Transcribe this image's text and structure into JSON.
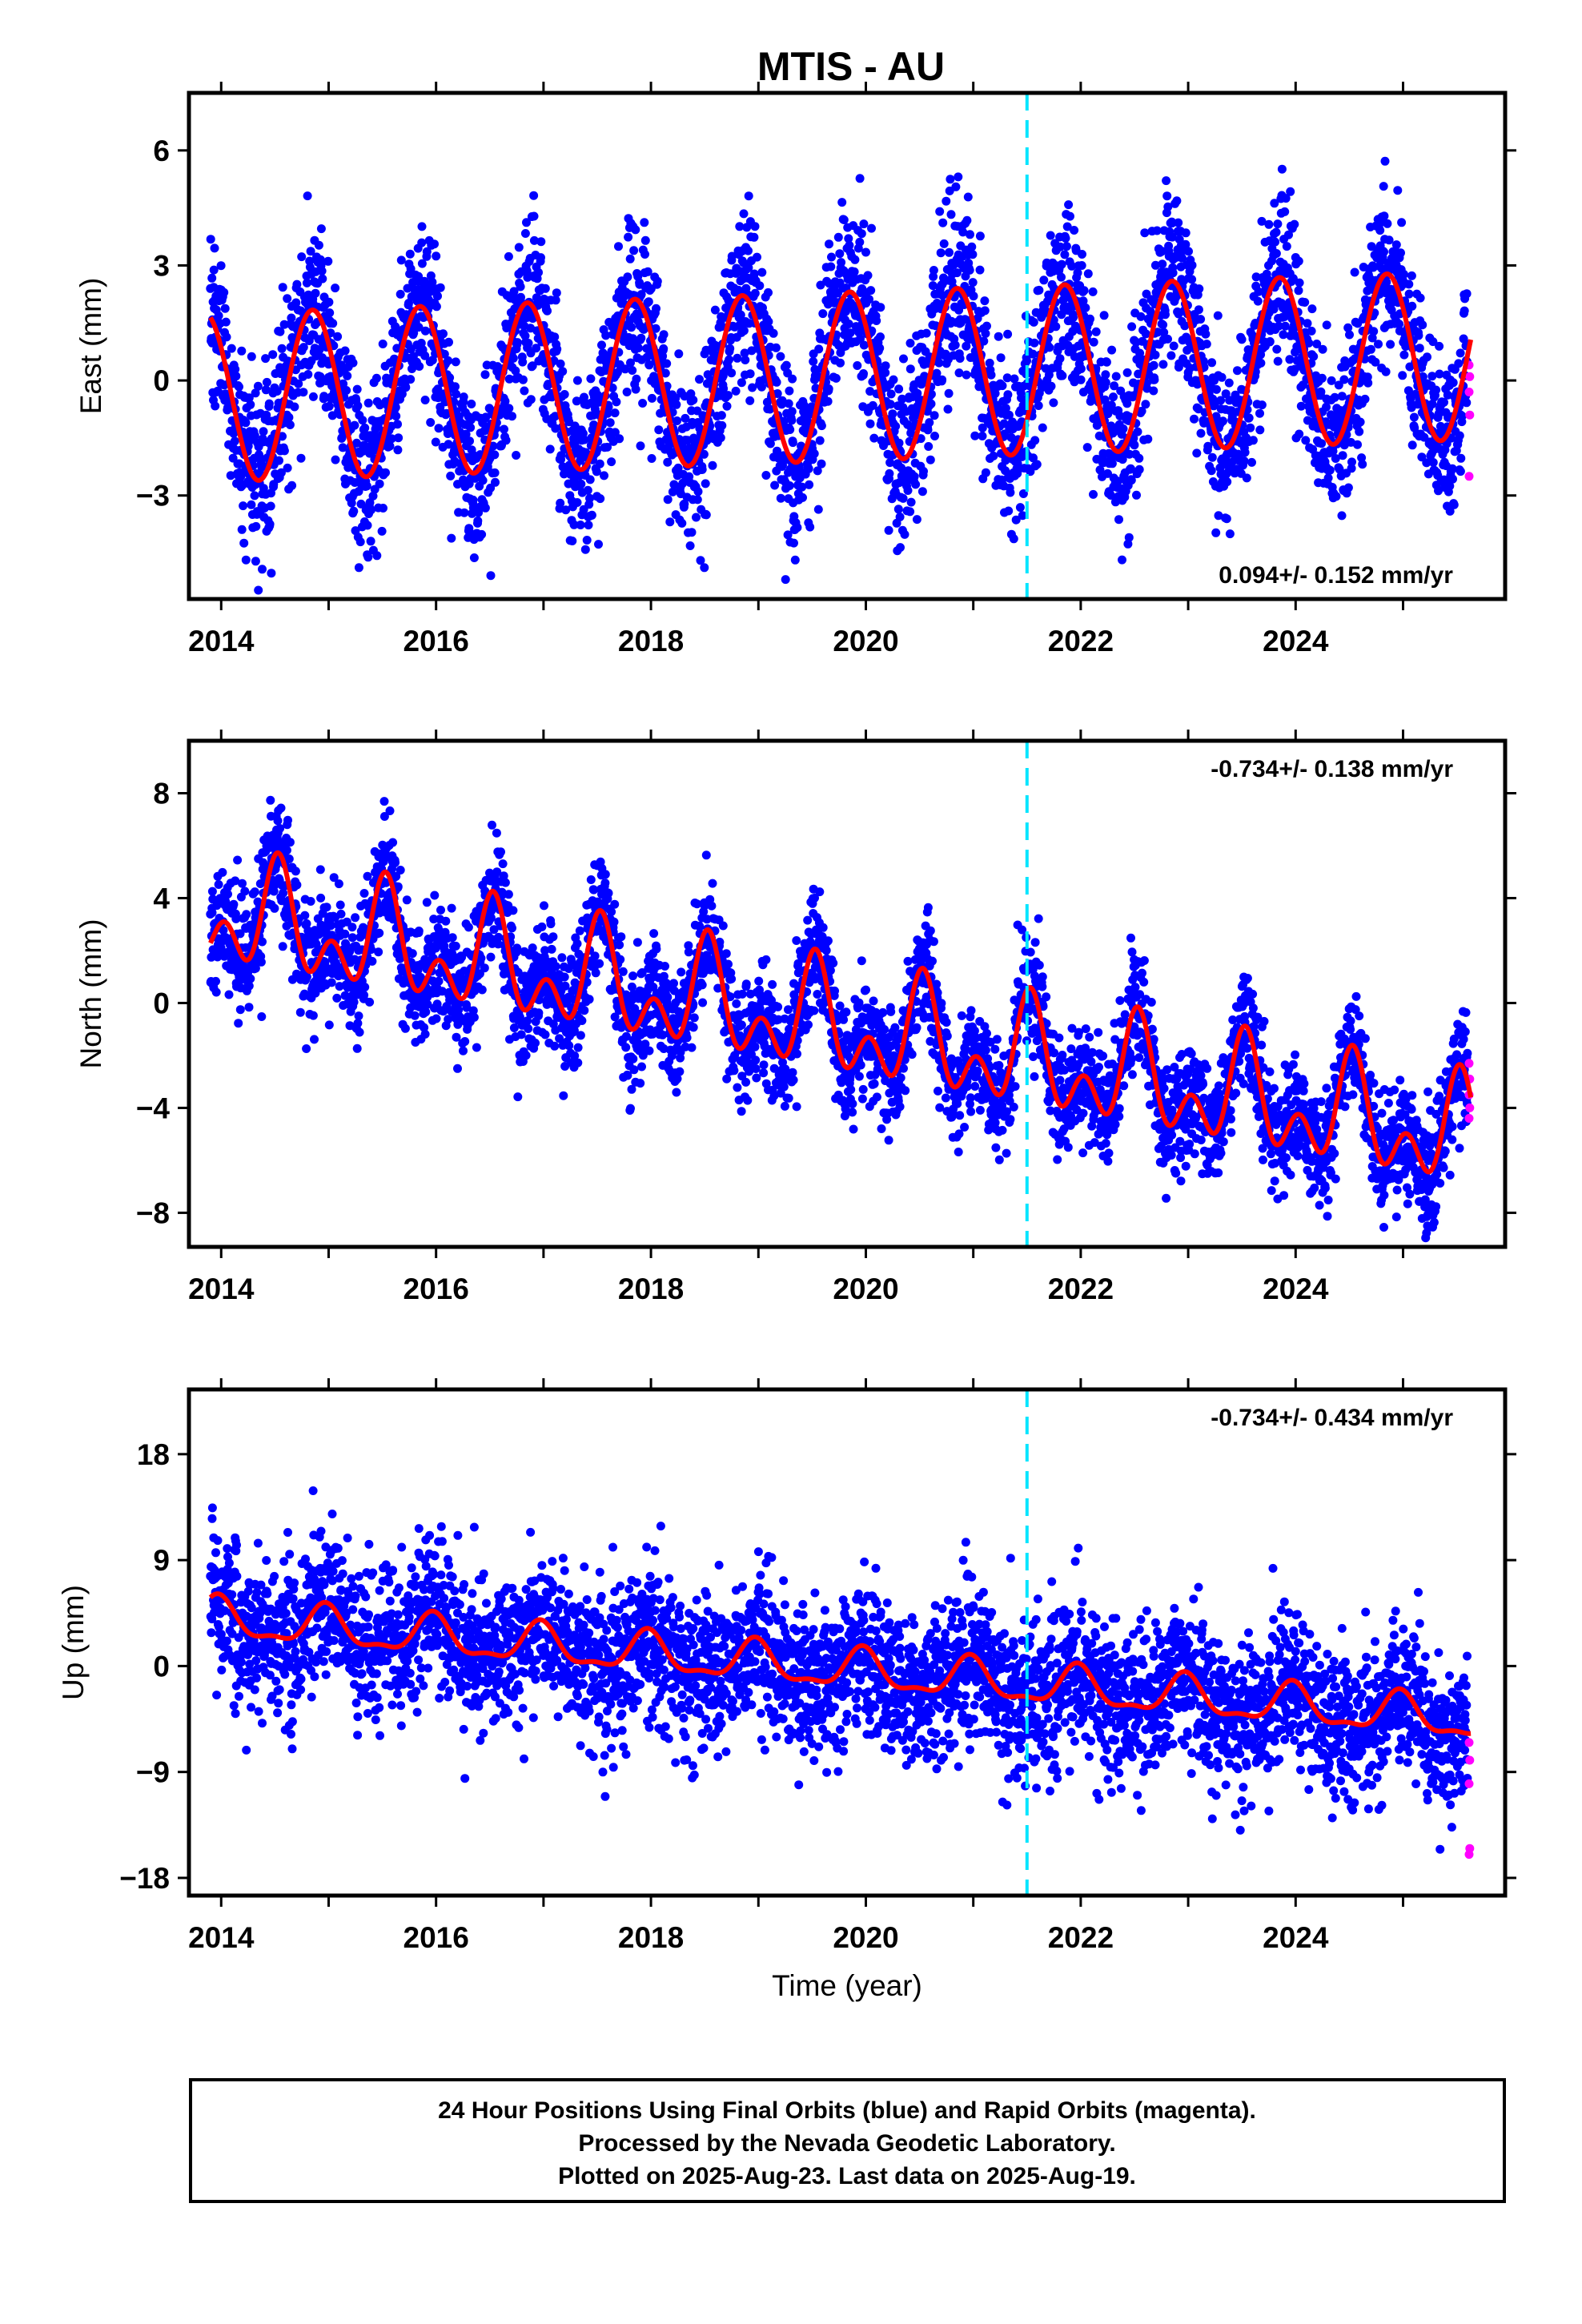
{
  "title": "MTIS - AU",
  "chart_data": [
    {
      "type": "scatter",
      "ylabel": "East (mm)",
      "xlim": [
        2013.7,
        2025.95
      ],
      "ylim": [
        -5.7,
        7.5
      ],
      "yticks": [
        -3,
        0,
        3,
        6
      ],
      "xticks": [
        2014,
        2016,
        2018,
        2020,
        2022,
        2024
      ],
      "rate_text": "0.094+/- 0.152 mm/yr",
      "rate_position": "bottom-right",
      "step_year": 2021.5,
      "model": {
        "offset": 0.1,
        "rate": 0.094,
        "annual_amp": 2.2,
        "annual_phase": 0.85,
        "semi_amp": 0.0,
        "semi_phase": 0.0
      },
      "scatter_sigma": 1.1,
      "series": [
        {
          "color": "#0000ff"
        },
        {
          "color": "#ff00ff",
          "values": [
            0.4,
            0.1,
            -0.3,
            -0.9,
            -2.5
          ]
        },
        {
          "color": "#ff0000"
        }
      ]
    },
    {
      "type": "scatter",
      "ylabel": "North (mm)",
      "xlim": [
        2013.7,
        2025.95
      ],
      "ylim": [
        -9.3,
        10.0
      ],
      "yticks": [
        -8,
        -4,
        0,
        4,
        8
      ],
      "xticks": [
        2014,
        2016,
        2018,
        2020,
        2022,
        2024
      ],
      "rate_text": "-0.734+/- 0.138 mm/yr",
      "rate_position": "top-right",
      "step_year": 2021.5,
      "model": {
        "offset": -0.9,
        "rate": -0.734,
        "annual_amp": 1.5,
        "annual_phase": 0.53,
        "semi_amp": 1.3,
        "semi_phase": 0.53
      },
      "scatter_sigma": 1.1,
      "series": [
        {
          "color": "#0000ff"
        },
        {
          "color": "#ff00ff",
          "values": [
            -2.3,
            -2.9,
            -3.5,
            -4.0,
            -4.4
          ]
        },
        {
          "color": "#ff0000"
        }
      ]
    },
    {
      "type": "scatter",
      "ylabel": "Up (mm)",
      "xlim": [
        2013.7,
        2025.95
      ],
      "ylim": [
        -19.5,
        23.5
      ],
      "yticks": [
        -18,
        -9,
        0,
        9,
        18
      ],
      "xticks": [
        2014,
        2016,
        2018,
        2020,
        2022,
        2024
      ],
      "xlabel": "Time (year)",
      "rate_text": "-0.734+/- 0.434 mm/yr",
      "rate_position": "top-right",
      "step_year": 2021.5,
      "model": {
        "offset": -0.3,
        "rate": -0.734,
        "annual_amp": 1.6,
        "annual_phase": 0.97,
        "semi_amp": 0.6,
        "semi_phase": 0.97
      },
      "scatter_sigma": 3.2,
      "series": [
        {
          "color": "#0000ff"
        },
        {
          "color": "#ff00ff",
          "values": [
            -6.5,
            -8.0,
            -10.0,
            -15.5,
            -16.0
          ]
        },
        {
          "color": "#ff0000"
        }
      ]
    }
  ],
  "data_span": {
    "start": 2013.9,
    "end": 2025.63
  },
  "footer": {
    "line1": "24 Hour Positions Using Final Orbits (blue) and Rapid Orbits (magenta).",
    "line2": "Processed by the Nevada Geodetic Laboratory.",
    "line3": "Plotted on 2025-Aug-23. Last data on 2025-Aug-19."
  },
  "colors": {
    "final_orbits": "#0000ff",
    "rapid_orbits": "#ff00ff",
    "model": "#ff0000",
    "step": "#00e5ff"
  }
}
